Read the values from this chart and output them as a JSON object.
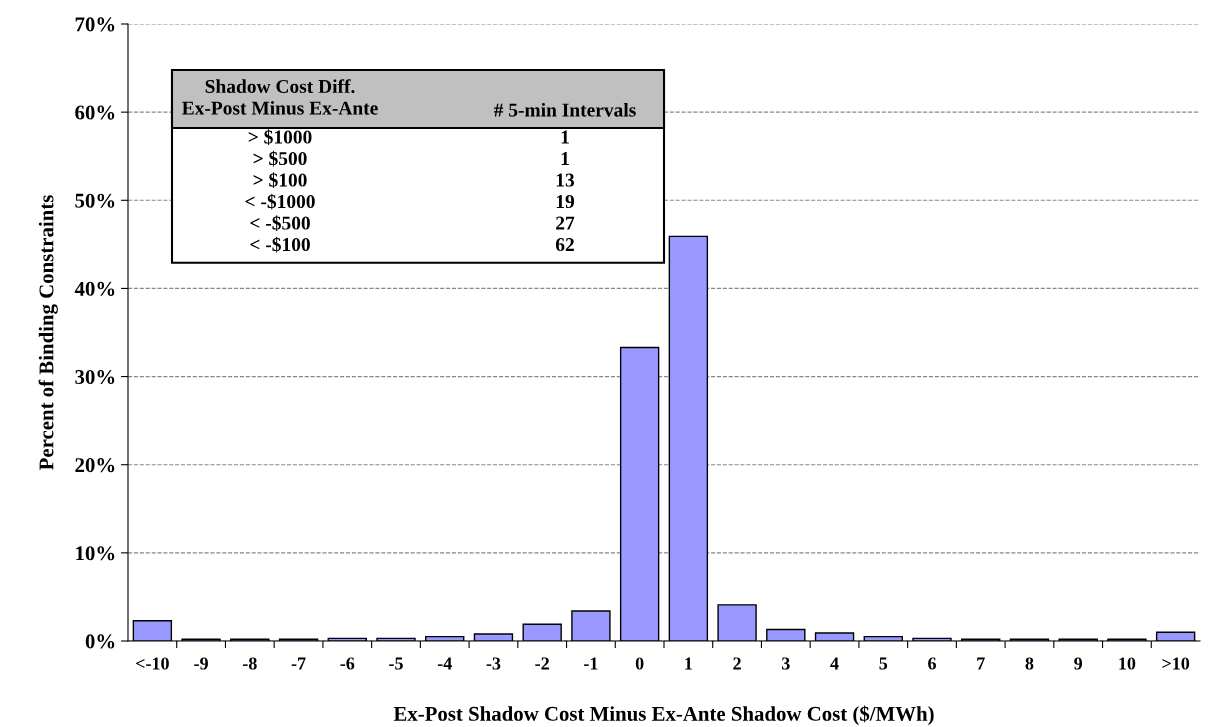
{
  "chart_data": {
    "type": "bar",
    "xlabel": "Ex-Post Shadow Cost Minus Ex-Ante Shadow Cost ($/MWh)",
    "ylabel": "Percent of Binding Constraints",
    "categories": [
      "<-10",
      "-9",
      "-8",
      "-7",
      "-6",
      "-5",
      "-4",
      "-3",
      "-2",
      "-1",
      "0",
      "1",
      "2",
      "3",
      "4",
      "5",
      "6",
      "7",
      "8",
      "9",
      "10",
      ">10"
    ],
    "values": [
      2.3,
      0.2,
      0.2,
      0.2,
      0.3,
      0.3,
      0.5,
      0.8,
      1.9,
      3.4,
      33.3,
      45.9,
      4.1,
      1.3,
      0.9,
      0.5,
      0.3,
      0.2,
      0.2,
      0.2,
      0.2,
      1.0
    ],
    "color": "#9999ff",
    "ylim": [
      0,
      70
    ],
    "yticks": [
      {
        "value": 0,
        "label": "0%"
      },
      {
        "value": 10,
        "label": "10%"
      },
      {
        "value": 20,
        "label": "20%"
      },
      {
        "value": 30,
        "label": "30%"
      },
      {
        "value": 40,
        "label": "40%"
      },
      {
        "value": 50,
        "label": "50%"
      },
      {
        "value": 60,
        "label": "60%"
      },
      {
        "value": 70,
        "label": "70%"
      }
    ],
    "grid": "y",
    "legend": false,
    "annotations": [
      "Shadow Cost Diff.\nEx-Post Minus Ex-Ante",
      "# 5-min Intervals",
      "> $1000",
      "1",
      "> $500",
      "1",
      "> $100",
      "13",
      "< -$1000",
      "19",
      "< -$500",
      "27",
      "< -$100",
      "62"
    ]
  }
}
